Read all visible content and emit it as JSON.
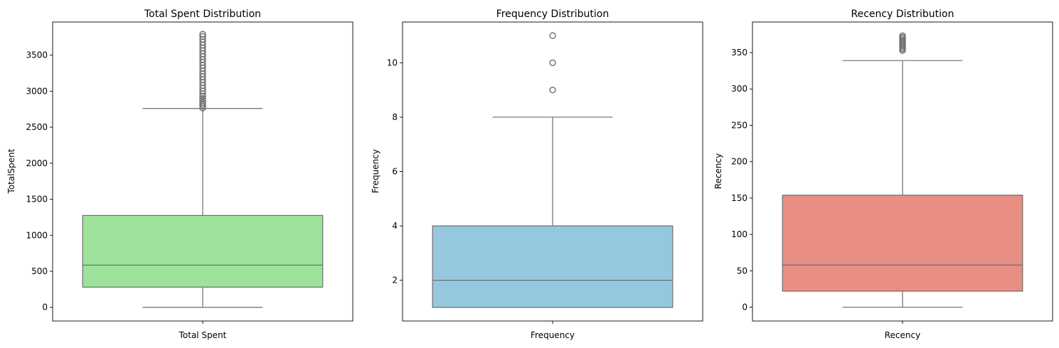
{
  "chart_data": [
    {
      "type": "box",
      "title": "Total Spent Distribution",
      "xlabel": "Total Spent",
      "ylabel": "TotalSpent",
      "category": "Total Spent",
      "color": "#9ee29b",
      "ylim": [
        -190,
        3960
      ],
      "yticks": [
        0,
        500,
        1000,
        1500,
        2000,
        2500,
        3000,
        3500
      ],
      "box": {
        "whisker_low": 0,
        "q1": 280,
        "median": 585,
        "q3": 1275,
        "whisker_high": 2760
      },
      "outliers": [
        2765,
        2790,
        2815,
        2840,
        2870,
        2900,
        2930,
        2960,
        3000,
        3040,
        3080,
        3120,
        3160,
        3200,
        3240,
        3280,
        3320,
        3360,
        3400,
        3440,
        3480,
        3520,
        3560,
        3600,
        3640,
        3680,
        3720,
        3760,
        3790
      ]
    },
    {
      "type": "box",
      "title": "Frequency Distribution",
      "xlabel": "Frequency",
      "ylabel": "Frequency",
      "category": "Frequency",
      "color": "#95c8de",
      "ylim": [
        0.5,
        11.5
      ],
      "yticks": [
        2,
        4,
        6,
        8,
        10
      ],
      "box": {
        "whisker_low": 1,
        "q1": 1,
        "median": 2,
        "q3": 4,
        "whisker_high": 8
      },
      "outliers": [
        9,
        10,
        11
      ]
    },
    {
      "type": "box",
      "title": "Recency Distribution",
      "xlabel": "Recency",
      "ylabel": "Recency",
      "category": "Recency",
      "color": "#e88e82",
      "ylim": [
        -19,
        392
      ],
      "yticks": [
        0,
        50,
        100,
        150,
        200,
        250,
        300,
        350
      ],
      "box": {
        "whisker_low": 0,
        "q1": 22,
        "median": 58,
        "q3": 154,
        "whisker_high": 339
      },
      "outliers": [
        353,
        355,
        357,
        359,
        361,
        363,
        365,
        367,
        369,
        371,
        373
      ]
    }
  ]
}
